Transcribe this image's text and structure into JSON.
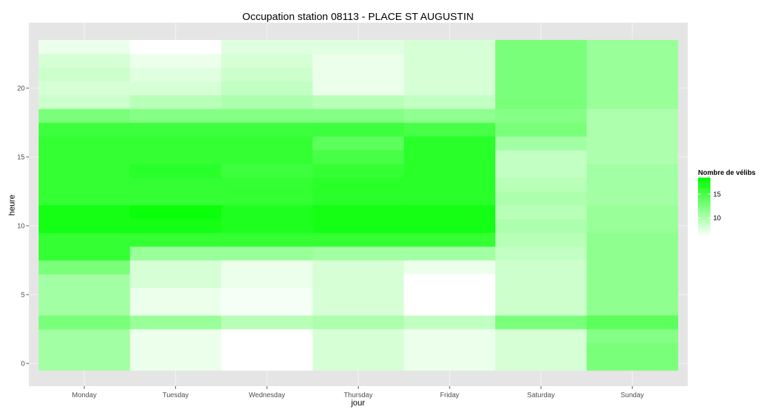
{
  "chart_data": {
    "type": "heatmap",
    "title": "Occupation station 08113 - PLACE ST AUGUSTIN",
    "xlabel": "jour",
    "ylabel": "heure",
    "x_categories": [
      "Monday",
      "Tuesday",
      "Wednesday",
      "Thursday",
      "Friday",
      "Saturday",
      "Sunday"
    ],
    "y_hours": [
      0,
      1,
      2,
      3,
      4,
      5,
      6,
      7,
      8,
      9,
      10,
      11,
      12,
      13,
      14,
      15,
      16,
      17,
      18,
      19,
      20,
      21,
      22,
      23
    ],
    "y_ticks": [
      0,
      5,
      10,
      15,
      20
    ],
    "ylim": [
      -0.5,
      23.5
    ],
    "legend": {
      "title": "Nombre de vélibs",
      "ticks": [
        10,
        15
      ],
      "range": [
        6,
        18.5
      ],
      "low_color": "#ffffff",
      "high_color": "#00ff00"
    },
    "grid": true,
    "panel_background": "#e5e5e5",
    "grid_color": "#f2f2f2",
    "values": [
      [
        10.5,
        10.5,
        10.5,
        12.5,
        10.5,
        10.5,
        10.5,
        12.5,
        16.0,
        16.0,
        17.5,
        17.5,
        16.0,
        16.0,
        16.0,
        16.0,
        16.0,
        15.5,
        12.5,
        8.5,
        8.0,
        8.5,
        8.0,
        7.0
      ],
      [
        7.0,
        7.0,
        7.0,
        11.0,
        7.0,
        7.0,
        8.0,
        8.0,
        11.0,
        16.0,
        17.5,
        18.0,
        16.0,
        16.0,
        16.5,
        16.0,
        16.0,
        15.5,
        12.0,
        9.5,
        8.0,
        7.5,
        7.0,
        6.0
      ],
      [
        6.0,
        6.0,
        6.0,
        9.5,
        6.5,
        6.5,
        7.0,
        7.0,
        11.0,
        16.0,
        17.0,
        17.0,
        16.0,
        16.0,
        15.5,
        16.0,
        16.0,
        15.5,
        12.0,
        10.0,
        9.0,
        8.5,
        8.0,
        7.5
      ],
      [
        8.0,
        8.0,
        8.0,
        10.0,
        8.0,
        8.0,
        8.0,
        8.0,
        10.5,
        16.0,
        17.5,
        17.5,
        16.5,
        16.5,
        16.0,
        15.0,
        14.0,
        15.5,
        12.0,
        9.5,
        7.0,
        7.0,
        7.0,
        7.5
      ],
      [
        7.0,
        7.0,
        7.0,
        9.0,
        6.0,
        6.0,
        6.0,
        7.0,
        10.5,
        16.0,
        17.5,
        17.5,
        16.5,
        16.5,
        16.5,
        16.5,
        16.5,
        15.0,
        11.5,
        9.0,
        8.0,
        8.0,
        8.0,
        8.0
      ],
      [
        8.0,
        8.0,
        8.0,
        12.5,
        8.5,
        8.5,
        8.5,
        8.5,
        9.0,
        9.5,
        10.0,
        9.5,
        10.0,
        9.5,
        9.0,
        9.0,
        10.5,
        12.5,
        12.0,
        12.5,
        12.5,
        12.5,
        12.5,
        12.5
      ],
      [
        12.5,
        12.5,
        12.0,
        14.0,
        11.5,
        11.5,
        11.5,
        11.5,
        11.5,
        11.5,
        11.0,
        11.0,
        10.5,
        10.5,
        10.5,
        10.0,
        10.0,
        10.0,
        10.0,
        11.0,
        11.0,
        11.0,
        11.0,
        11.0
      ]
    ]
  }
}
